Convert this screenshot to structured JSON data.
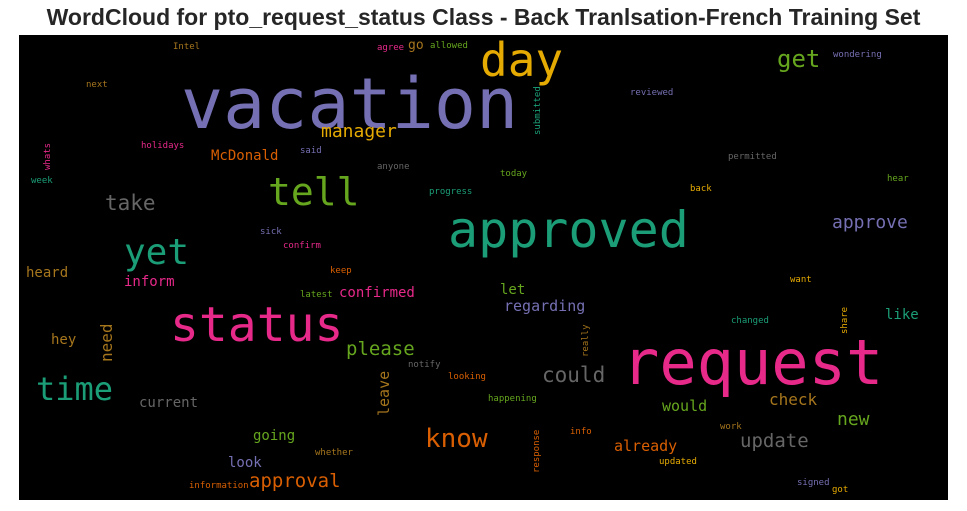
{
  "title": "WordCloud for pto_request_status Class - Back Tranlsation-French Training Set",
  "colors": {
    "background": "#000000",
    "purple": "#7570b3",
    "green": "#1b9e77",
    "pink": "#e7298a",
    "orange": "#d95f02",
    "olive": "#66a61e",
    "gold": "#e6ab02",
    "brown": "#a6761d",
    "gray": "#666666"
  },
  "words": {
    "vacation": "vacation",
    "request": "request",
    "approved": "approved",
    "status": "status",
    "day": "day",
    "tell": "tell",
    "yet": "yet",
    "time": "time",
    "know": "know",
    "get": "get",
    "manager": "manager",
    "take": "take",
    "approve": "approve",
    "could": "could",
    "please": "please",
    "approval": "approval",
    "update": "update",
    "new": "new",
    "check": "check",
    "leave": "leave",
    "need": "need",
    "regarding": "regarding",
    "confirmed": "confirmed",
    "heard": "heard",
    "inform": "inform",
    "mcdonald": "McDonald",
    "let": "let",
    "like": "like",
    "would": "would",
    "already": "already",
    "hey": "hey",
    "current": "current",
    "going": "going",
    "look": "look",
    "intel": "Intel",
    "next": "next",
    "agree": "agree",
    "go": "go",
    "allowed": "allowed",
    "wondering": "wondering",
    "reviewed": "reviewed",
    "submitted": "submitted",
    "holidays": "holidays",
    "said": "said",
    "whats": "whats",
    "anyone": "anyone",
    "permitted": "permitted",
    "week": "week",
    "today": "today",
    "hear": "hear",
    "progress": "progress",
    "back": "back",
    "sick": "sick",
    "confirm": "confirm",
    "keep": "keep",
    "want": "want",
    "latest": "latest",
    "share": "share",
    "changed": "changed",
    "really": "really",
    "notify": "notify",
    "looking": "looking",
    "happening": "happening",
    "response": "response",
    "info": "info",
    "work": "work",
    "whether": "whether",
    "updated": "updated",
    "information": "information",
    "signed": "signed",
    "got": "got"
  }
}
